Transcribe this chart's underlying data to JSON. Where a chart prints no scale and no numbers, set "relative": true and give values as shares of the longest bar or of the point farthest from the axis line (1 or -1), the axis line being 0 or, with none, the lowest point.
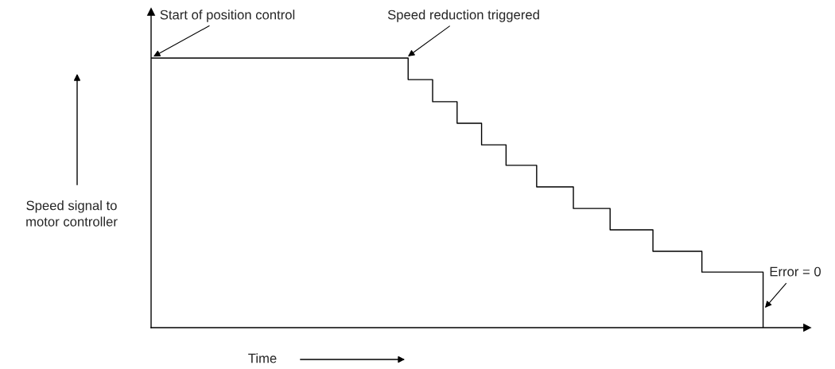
{
  "chart_data": {
    "type": "step",
    "relative": true,
    "xlabel": "Time",
    "ylabel": "Speed signal to\nmotor controller",
    "categories": [
      null,
      null,
      null,
      null,
      null,
      null,
      null,
      null,
      null,
      null,
      null,
      null,
      null,
      null,
      null,
      null,
      null,
      null,
      null,
      null,
      null,
      null,
      null,
      null,
      null,
      null,
      null,
      null,
      null,
      null,
      null,
      null,
      null,
      null,
      null,
      null,
      null,
      null,
      null,
      null,
      null,
      null,
      null,
      null,
      null,
      null,
      null,
      null,
      null,
      null,
      null,
      null,
      null,
      null,
      null,
      null,
      null,
      null,
      null,
      null,
      null,
      null,
      null,
      null,
      null,
      null,
      null,
      null,
      null,
      null,
      null,
      null,
      null,
      null,
      null,
      null,
      null,
      null,
      null,
      null,
      null,
      null,
      null,
      null,
      null,
      null,
      null,
      null,
      null,
      null,
      null,
      null,
      null,
      null,
      null,
      null,
      null,
      null,
      null,
      null,
      null
    ],
    "series": [
      {
        "color": "#000000",
        "values": [
          1.0,
          1.0,
          1.0,
          1.0,
          1.0,
          1.0,
          1.0,
          1.0,
          1.0,
          1.0,
          1.0,
          1.0,
          1.0,
          1.0,
          1.0,
          1.0,
          1.0,
          1.0,
          1.0,
          1.0,
          1.0,
          1.0,
          1.0,
          1.0,
          1.0,
          1.0,
          1.0,
          1.0,
          1.0,
          1.0,
          1.0,
          1.0,
          1.0,
          1.0,
          1.0,
          1.0,
          1.0,
          1.0,
          1.0,
          1.0,
          1.0,
          1.0,
          0.92,
          0.92,
          0.92,
          0.92,
          0.838,
          0.838,
          0.838,
          0.838,
          0.758,
          0.758,
          0.758,
          0.758,
          0.678,
          0.678,
          0.678,
          0.678,
          0.602,
          0.602,
          0.602,
          0.602,
          0.602,
          0.522,
          0.522,
          0.522,
          0.522,
          0.522,
          0.522,
          0.442,
          0.442,
          0.442,
          0.442,
          0.442,
          0.442,
          0.363,
          0.363,
          0.363,
          0.363,
          0.363,
          0.363,
          0.363,
          0.283,
          0.283,
          0.283,
          0.283,
          0.283,
          0.283,
          0.283,
          0.283,
          0.206,
          0.206,
          0.206,
          0.206,
          0.206,
          0.206,
          0.206,
          0.206,
          0.206,
          0.206,
          0
        ]
      }
    ],
    "annotations": [
      "Start of position control",
      "Speed reduction triggered",
      "Error = 0"
    ]
  }
}
